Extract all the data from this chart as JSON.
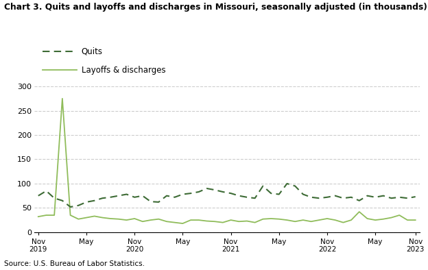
{
  "title": "Chart 3. Quits and layoffs and discharges in Missouri, seasonally adjusted (in thousands)",
  "source": "Source: U.S. Bureau of Labor Statistics.",
  "quits_color": "#3d6b35",
  "layoffs_color": "#8fbc5a",
  "background_color": "#ffffff",
  "grid_color": "#cccccc",
  "ylim": [
    0,
    300
  ],
  "yticks": [
    0,
    50,
    100,
    150,
    200,
    250,
    300
  ],
  "legend_labels": [
    "Quits",
    "Layoffs & discharges"
  ],
  "quits": [
    75,
    85,
    70,
    65,
    52,
    55,
    62,
    65,
    70,
    72,
    75,
    78,
    72,
    75,
    63,
    62,
    75,
    72,
    78,
    80,
    83,
    90,
    87,
    83,
    80,
    75,
    72,
    70,
    95,
    80,
    78,
    100,
    95,
    78,
    72,
    70,
    72,
    75,
    70,
    72,
    65,
    75,
    72,
    75,
    70,
    72,
    70,
    73
  ],
  "layoffs": [
    32,
    35,
    35,
    275,
    35,
    27,
    30,
    33,
    30,
    28,
    27,
    25,
    28,
    22,
    25,
    27,
    22,
    20,
    18,
    25,
    25,
    23,
    22,
    20,
    25,
    22,
    23,
    20,
    27,
    28,
    27,
    25,
    22,
    25,
    22,
    25,
    28,
    25,
    20,
    25,
    42,
    28,
    25,
    27,
    30,
    35,
    25,
    25
  ],
  "x_major_ticks": [
    0,
    6,
    12,
    18,
    24,
    30,
    36,
    42,
    47
  ],
  "x_major_labels": [
    "Nov\n2019",
    "May",
    "Nov\n2020",
    "May",
    "Nov\n2021",
    "May",
    "Nov\n2022",
    "May",
    "Nov\n2023"
  ]
}
